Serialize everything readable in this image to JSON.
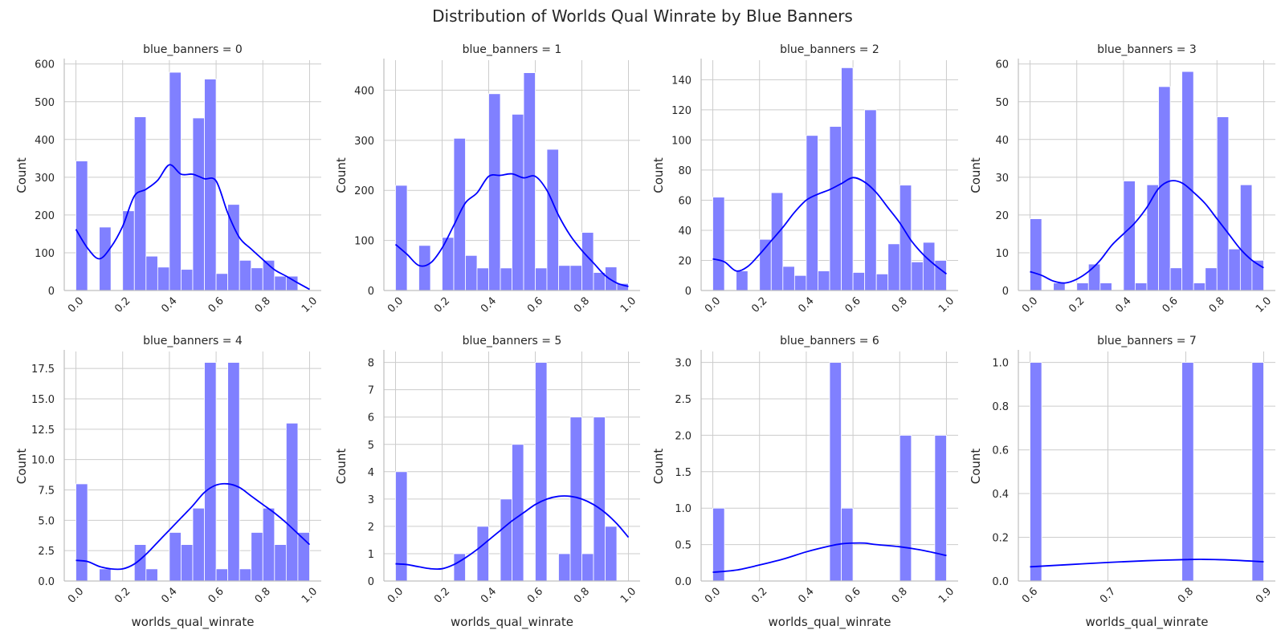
{
  "figure": {
    "title": "Distribution of Worlds Qual Winrate by Blue Banners",
    "colors": {
      "bar": "#8080ff",
      "kde": "#0000ff",
      "grid": "#cccccc",
      "spine": "#bfbfbf",
      "text": "#262626"
    }
  },
  "chart_data": [
    {
      "type": "bar",
      "title": "blue_banners = 0",
      "xlabel": "",
      "ylabel": "Count",
      "xlim": [
        -0.05,
        1.05
      ],
      "ylim": [
        0,
        610
      ],
      "xticks": [
        "0.0",
        "0.2",
        "0.4",
        "0.6",
        "0.8",
        "1.0"
      ],
      "xtick_values": [
        0,
        0.2,
        0.4,
        0.6,
        0.8,
        1.0
      ],
      "yticks": [
        "0",
        "100",
        "200",
        "300",
        "400",
        "500",
        "600"
      ],
      "ytick_values": [
        0,
        100,
        200,
        300,
        400,
        500,
        600
      ],
      "bin_start": 0,
      "bin_width": 0.05,
      "values": [
        343,
        0,
        168,
        0,
        211,
        460,
        91,
        62,
        578,
        56,
        457,
        560,
        45,
        228,
        80,
        60,
        80,
        38,
        38,
        0
      ],
      "kde": [
        [
          0,
          162
        ],
        [
          0.05,
          112
        ],
        [
          0.1,
          84
        ],
        [
          0.15,
          115
        ],
        [
          0.2,
          170
        ],
        [
          0.25,
          250
        ],
        [
          0.3,
          268
        ],
        [
          0.35,
          292
        ],
        [
          0.4,
          333
        ],
        [
          0.45,
          308
        ],
        [
          0.5,
          308
        ],
        [
          0.55,
          296
        ],
        [
          0.6,
          290
        ],
        [
          0.65,
          205
        ],
        [
          0.7,
          140
        ],
        [
          0.75,
          110
        ],
        [
          0.8,
          82
        ],
        [
          0.85,
          55
        ],
        [
          0.9,
          38
        ],
        [
          0.95,
          20
        ],
        [
          1.0,
          3
        ]
      ]
    },
    {
      "type": "bar",
      "title": "blue_banners = 1",
      "xlabel": "",
      "ylabel": "Count",
      "xlim": [
        -0.05,
        1.05
      ],
      "ylim": [
        0,
        460
      ],
      "xticks": [
        "0.0",
        "0.2",
        "0.4",
        "0.6",
        "0.8",
        "1.0"
      ],
      "xtick_values": [
        0,
        0.2,
        0.4,
        0.6,
        0.8,
        1.0
      ],
      "yticks": [
        "0",
        "100",
        "200",
        "300",
        "400"
      ],
      "ytick_values": [
        0,
        100,
        200,
        300,
        400
      ],
      "bin_start": 0,
      "bin_width": 0.05,
      "values": [
        210,
        0,
        90,
        0,
        106,
        304,
        70,
        45,
        393,
        45,
        352,
        435,
        45,
        282,
        50,
        50,
        116,
        36,
        47,
        14
      ],
      "kde": [
        [
          0,
          92
        ],
        [
          0.05,
          72
        ],
        [
          0.1,
          50
        ],
        [
          0.15,
          55
        ],
        [
          0.2,
          85
        ],
        [
          0.25,
          130
        ],
        [
          0.3,
          175
        ],
        [
          0.35,
          195
        ],
        [
          0.4,
          228
        ],
        [
          0.45,
          230
        ],
        [
          0.5,
          233
        ],
        [
          0.55,
          225
        ],
        [
          0.6,
          228
        ],
        [
          0.65,
          200
        ],
        [
          0.7,
          150
        ],
        [
          0.75,
          110
        ],
        [
          0.8,
          80
        ],
        [
          0.85,
          55
        ],
        [
          0.9,
          30
        ],
        [
          0.95,
          15
        ],
        [
          1.0,
          8
        ]
      ]
    },
    {
      "type": "bar",
      "title": "blue_banners = 2",
      "xlabel": "",
      "ylabel": "Count",
      "xlim": [
        -0.05,
        1.05
      ],
      "ylim": [
        0,
        153
      ],
      "xticks": [
        "0.0",
        "0.2",
        "0.4",
        "0.6",
        "0.8",
        "1.0"
      ],
      "xtick_values": [
        0,
        0.2,
        0.4,
        0.6,
        0.8,
        1.0
      ],
      "yticks": [
        "0",
        "20",
        "40",
        "60",
        "80",
        "100",
        "120",
        "140"
      ],
      "ytick_values": [
        0,
        20,
        40,
        60,
        80,
        100,
        120,
        140
      ],
      "bin_start": 0,
      "bin_width": 0.05,
      "values": [
        62,
        0,
        13,
        0,
        34,
        65,
        16,
        10,
        103,
        13,
        109,
        148,
        12,
        120,
        11,
        31,
        70,
        19,
        32,
        20
      ],
      "kde": [
        [
          0,
          21
        ],
        [
          0.05,
          19
        ],
        [
          0.1,
          13
        ],
        [
          0.15,
          16
        ],
        [
          0.2,
          24
        ],
        [
          0.25,
          33
        ],
        [
          0.3,
          42
        ],
        [
          0.35,
          52
        ],
        [
          0.4,
          60
        ],
        [
          0.45,
          64
        ],
        [
          0.5,
          67
        ],
        [
          0.55,
          71
        ],
        [
          0.6,
          75
        ],
        [
          0.65,
          72
        ],
        [
          0.7,
          65
        ],
        [
          0.75,
          55
        ],
        [
          0.8,
          45
        ],
        [
          0.85,
          33
        ],
        [
          0.9,
          24
        ],
        [
          0.95,
          17
        ],
        [
          1.0,
          11
        ]
      ]
    },
    {
      "type": "bar",
      "title": "blue_banners = 3",
      "xlabel": "",
      "ylabel": "Count",
      "xlim": [
        -0.05,
        1.05
      ],
      "ylim": [
        0,
        61
      ],
      "xticks": [
        "0.0",
        "0.2",
        "0.4",
        "0.6",
        "0.8",
        "1.0"
      ],
      "xtick_values": [
        0,
        0.2,
        0.4,
        0.6,
        0.8,
        1.0
      ],
      "yticks": [
        "0",
        "10",
        "20",
        "30",
        "40",
        "50",
        "60"
      ],
      "ytick_values": [
        0,
        10,
        20,
        30,
        40,
        50,
        60
      ],
      "bin_start": 0,
      "bin_width": 0.05,
      "values": [
        19,
        0,
        2,
        0,
        2,
        7,
        2,
        0,
        29,
        2,
        28,
        54,
        6,
        58,
        2,
        6,
        46,
        11,
        28,
        8
      ],
      "kde": [
        [
          0,
          5
        ],
        [
          0.05,
          4
        ],
        [
          0.1,
          2.5
        ],
        [
          0.15,
          2
        ],
        [
          0.2,
          3
        ],
        [
          0.25,
          5
        ],
        [
          0.3,
          8
        ],
        [
          0.35,
          12
        ],
        [
          0.4,
          15
        ],
        [
          0.45,
          18
        ],
        [
          0.5,
          22
        ],
        [
          0.55,
          27
        ],
        [
          0.6,
          29
        ],
        [
          0.65,
          28.5
        ],
        [
          0.7,
          26
        ],
        [
          0.75,
          23
        ],
        [
          0.8,
          19
        ],
        [
          0.85,
          15
        ],
        [
          0.9,
          11
        ],
        [
          0.95,
          8
        ],
        [
          1.0,
          6
        ]
      ]
    },
    {
      "type": "bar",
      "title": "blue_banners = 4",
      "xlabel": "worlds_qual_winrate",
      "ylabel": "Count",
      "xlim": [
        -0.05,
        1.05
      ],
      "ylim": [
        0,
        18.9
      ],
      "xticks": [
        "0.0",
        "0.2",
        "0.4",
        "0.6",
        "0.8",
        "1.0"
      ],
      "xtick_values": [
        0,
        0.2,
        0.4,
        0.6,
        0.8,
        1.0
      ],
      "yticks": [
        "0.0",
        "2.5",
        "5.0",
        "7.5",
        "10.0",
        "12.5",
        "15.0",
        "17.5"
      ],
      "ytick_values": [
        0,
        2.5,
        5,
        7.5,
        10,
        12.5,
        15,
        17.5
      ],
      "bin_start": 0,
      "bin_width": 0.05,
      "values": [
        8,
        0,
        1,
        0,
        0,
        3,
        1,
        0,
        4,
        3,
        6,
        18,
        1,
        18,
        1,
        4,
        6,
        3,
        13,
        4
      ],
      "kde": [
        [
          0,
          1.7
        ],
        [
          0.05,
          1.6
        ],
        [
          0.1,
          1.2
        ],
        [
          0.15,
          1.0
        ],
        [
          0.2,
          1.0
        ],
        [
          0.25,
          1.4
        ],
        [
          0.3,
          2.2
        ],
        [
          0.35,
          3.2
        ],
        [
          0.4,
          4.2
        ],
        [
          0.45,
          5.2
        ],
        [
          0.5,
          6.2
        ],
        [
          0.55,
          7.3
        ],
        [
          0.6,
          7.9
        ],
        [
          0.65,
          8.0
        ],
        [
          0.7,
          7.7
        ],
        [
          0.75,
          7.0
        ],
        [
          0.8,
          6.3
        ],
        [
          0.85,
          5.6
        ],
        [
          0.9,
          4.8
        ],
        [
          0.95,
          3.9
        ],
        [
          1.0,
          3.0
        ]
      ]
    },
    {
      "type": "bar",
      "title": "blue_banners = 5",
      "xlabel": "worlds_qual_winrate",
      "ylabel": "Count",
      "xlim": [
        -0.05,
        1.05
      ],
      "ylim": [
        0,
        8.4
      ],
      "xticks": [
        "0.0",
        "0.2",
        "0.4",
        "0.6",
        "0.8",
        "1.0"
      ],
      "xtick_values": [
        0,
        0.2,
        0.4,
        0.6,
        0.8,
        1.0
      ],
      "yticks": [
        "0",
        "1",
        "2",
        "3",
        "4",
        "5",
        "6",
        "7",
        "8"
      ],
      "ytick_values": [
        0,
        1,
        2,
        3,
        4,
        5,
        6,
        7,
        8
      ],
      "bin_start": 0,
      "bin_width": 0.05,
      "values": [
        4,
        0,
        0,
        0,
        0,
        1,
        0,
        2,
        0,
        3,
        5,
        0,
        8,
        0,
        1,
        6,
        1,
        6,
        2,
        0
      ],
      "kde": [
        [
          0,
          0.63
        ],
        [
          0.05,
          0.6
        ],
        [
          0.1,
          0.52
        ],
        [
          0.15,
          0.45
        ],
        [
          0.2,
          0.45
        ],
        [
          0.25,
          0.6
        ],
        [
          0.3,
          0.85
        ],
        [
          0.35,
          1.15
        ],
        [
          0.4,
          1.5
        ],
        [
          0.45,
          1.85
        ],
        [
          0.5,
          2.2
        ],
        [
          0.55,
          2.5
        ],
        [
          0.6,
          2.8
        ],
        [
          0.65,
          3.0
        ],
        [
          0.7,
          3.1
        ],
        [
          0.75,
          3.1
        ],
        [
          0.8,
          3.0
        ],
        [
          0.85,
          2.8
        ],
        [
          0.9,
          2.5
        ],
        [
          0.95,
          2.1
        ],
        [
          1.0,
          1.6
        ]
      ]
    },
    {
      "type": "bar",
      "title": "blue_banners = 6",
      "xlabel": "worlds_qual_winrate",
      "ylabel": "Count",
      "xlim": [
        -0.05,
        1.05
      ],
      "ylim": [
        0,
        3.15
      ],
      "xticks": [
        "0.0",
        "0.2",
        "0.4",
        "0.6",
        "0.8",
        "1.0"
      ],
      "xtick_values": [
        0,
        0.2,
        0.4,
        0.6,
        0.8,
        1.0
      ],
      "yticks": [
        "0.0",
        "0.5",
        "1.0",
        "1.5",
        "2.0",
        "2.5",
        "3.0"
      ],
      "ytick_values": [
        0,
        0.5,
        1,
        1.5,
        2,
        2.5,
        3
      ],
      "bin_start": 0,
      "bin_width": 0.05,
      "values": [
        1,
        0,
        0,
        0,
        0,
        0,
        0,
        0,
        0,
        0,
        3,
        1,
        0,
        0,
        0,
        0,
        2,
        0,
        0,
        2
      ],
      "kde": [
        [
          0,
          0.12
        ],
        [
          0.1,
          0.15
        ],
        [
          0.2,
          0.22
        ],
        [
          0.3,
          0.3
        ],
        [
          0.4,
          0.4
        ],
        [
          0.5,
          0.48
        ],
        [
          0.55,
          0.51
        ],
        [
          0.6,
          0.52
        ],
        [
          0.65,
          0.52
        ],
        [
          0.7,
          0.5
        ],
        [
          0.8,
          0.47
        ],
        [
          0.9,
          0.42
        ],
        [
          1.0,
          0.35
        ]
      ]
    },
    {
      "type": "bar",
      "title": "blue_banners = 7",
      "xlabel": "worlds_qual_winrate",
      "ylabel": "Count",
      "xlim": [
        0.585,
        0.915
      ],
      "ylim": [
        0,
        1.05
      ],
      "xticks": [
        "0.6",
        "0.7",
        "0.8",
        "0.9"
      ],
      "xtick_values": [
        0.6,
        0.7,
        0.8,
        0.9
      ],
      "yticks": [
        "0.0",
        "0.2",
        "0.4",
        "0.6",
        "0.8",
        "1.0"
      ],
      "ytick_values": [
        0,
        0.2,
        0.4,
        0.6,
        0.8,
        1.0
      ],
      "bin_start": 0.6,
      "bin_width": 0.015,
      "values": [
        1,
        0,
        0,
        0,
        0,
        0,
        0,
        0,
        0,
        0,
        0,
        0,
        0,
        1,
        0,
        0,
        0,
        0,
        0,
        1
      ],
      "kde": [
        [
          0.6,
          0.065
        ],
        [
          0.65,
          0.075
        ],
        [
          0.7,
          0.085
        ],
        [
          0.75,
          0.093
        ],
        [
          0.8,
          0.098
        ],
        [
          0.82,
          0.099
        ],
        [
          0.85,
          0.097
        ],
        [
          0.9,
          0.088
        ]
      ]
    }
  ]
}
